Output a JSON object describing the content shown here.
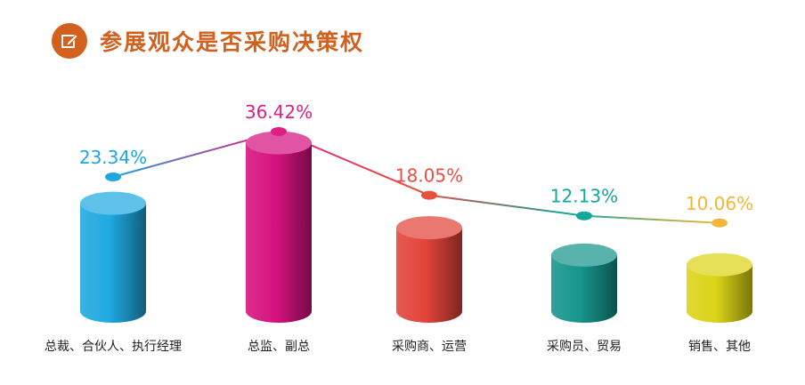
{
  "header": {
    "title": "参展观众是否采购决策权",
    "icon": "edit-icon",
    "title_color": "#d2611f"
  },
  "chart_data": {
    "type": "bar",
    "title": "参展观众是否采购决策权",
    "categories": [
      "总裁、合伙人、执行经理",
      "总监、副总",
      "采购商、运营",
      "采购员、贸易",
      "销售、其他"
    ],
    "values": [
      23.34,
      36.42,
      18.05,
      12.13,
      10.06
    ],
    "value_labels": [
      "23.34%",
      "36.42%",
      "18.05%",
      "12.13%",
      "10.06%"
    ],
    "colors": [
      "#1fa9e0",
      "#d6127f",
      "#e2443a",
      "#15958c",
      "#dcd418"
    ],
    "label_colors": [
      "#1ea7df",
      "#df1f86",
      "#e8503f",
      "#14a59c",
      "#f2b63a"
    ],
    "ylim": [
      0,
      40
    ],
    "grid": false,
    "legend": "none",
    "xlabel": "",
    "ylabel": ""
  }
}
